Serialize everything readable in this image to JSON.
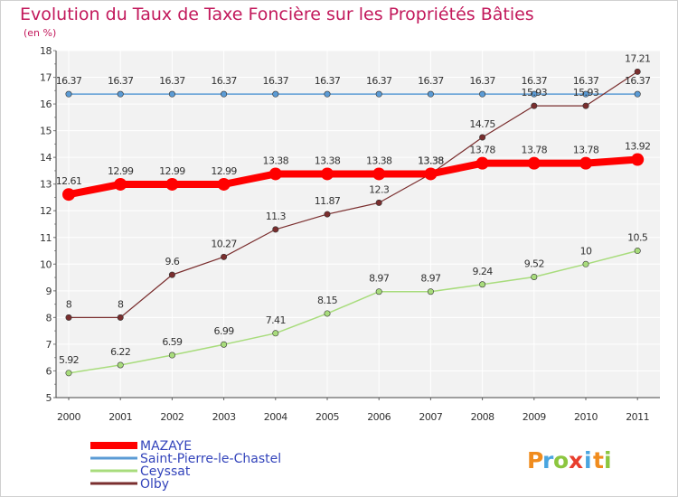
{
  "chart_data": {
    "type": "line",
    "title": "Evolution du Taux de Taxe Foncière sur les Propriétés Bâties",
    "subtitle": "(en %)",
    "xlabel": "",
    "ylabel": "",
    "ylim": [
      5,
      18
    ],
    "yticks": [
      "5",
      "6",
      "7",
      "8",
      "9",
      "10",
      "11",
      "12",
      "13",
      "14",
      "15",
      "16",
      "17",
      "18"
    ],
    "categories": [
      "2000",
      "2001",
      "2002",
      "2003",
      "2004",
      "2005",
      "2006",
      "2007",
      "2008",
      "2009",
      "2010",
      "2011"
    ],
    "grid": true,
    "legend_position": "bottom-left",
    "series": [
      {
        "name": "Saint-Pierre-le-Chastel",
        "color": "#5b9bd5",
        "values": [
          16.37,
          16.37,
          16.37,
          16.37,
          16.37,
          16.37,
          16.37,
          16.37,
          16.37,
          16.37,
          16.37,
          16.37
        ],
        "labels": [
          "16.37",
          "16.37",
          "16.37",
          "16.37",
          "16.37",
          "16.37",
          "16.37",
          "16.37",
          "16.37",
          "16.37",
          "16.37",
          "16.37"
        ]
      },
      {
        "name": "Ceyssat",
        "color": "#a8dc7c",
        "values": [
          5.92,
          6.22,
          6.59,
          6.99,
          7.41,
          8.15,
          8.97,
          8.97,
          9.24,
          9.52,
          10,
          10.5
        ],
        "labels": [
          "5.92",
          "6.22",
          "6.59",
          "6.99",
          "7.41",
          "8.15",
          "8.97",
          "8.97",
          "9.24",
          "9.52",
          "10",
          "10.5"
        ]
      },
      {
        "name": "Olby",
        "color": "#7a2e2e",
        "values": [
          8,
          8,
          9.6,
          10.27,
          11.3,
          11.87,
          12.3,
          13.38,
          14.75,
          15.93,
          15.93,
          17.21
        ],
        "labels": [
          "8",
          "8",
          "9.6",
          "10.27",
          "11.3",
          "11.87",
          "12.3",
          "13.38",
          "14.75",
          "15.93",
          "15.93",
          "17.21"
        ]
      },
      {
        "name": "MAZAYE",
        "color": "#ff0000",
        "values": [
          12.61,
          12.99,
          12.99,
          12.99,
          13.38,
          13.38,
          13.38,
          13.38,
          13.78,
          13.78,
          13.78,
          13.92
        ],
        "labels": [
          "12.61",
          "12.99",
          "12.99",
          "12.99",
          "13.38",
          "13.38",
          "13.38",
          "13.38",
          "13.78",
          "13.78",
          "13.78",
          "13.92"
        ]
      }
    ],
    "legend": [
      "MAZAYE",
      "Saint-Pierre-le-Chastel",
      "Ceyssat",
      "Olby"
    ]
  },
  "logo": {
    "text": "Proxiti",
    "letters": [
      "P",
      "r",
      "o",
      "x",
      "i",
      "t",
      "i"
    ]
  }
}
